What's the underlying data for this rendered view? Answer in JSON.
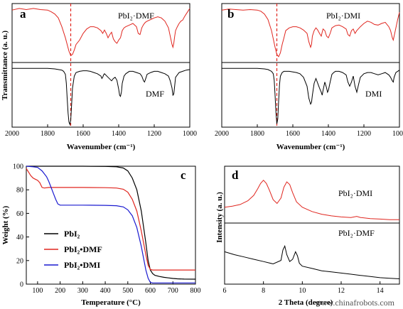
{
  "chart_data": [
    {
      "panel": "a",
      "type": "line",
      "xlabel": "Wavenumber (cm⁻¹)",
      "ylabel": "Transmittance (a. u.)",
      "xlim": [
        2000,
        1000
      ],
      "xticks": [
        2000,
        1800,
        1600,
        1400,
        1200,
        1000
      ],
      "reference_line_x": 1670,
      "series": [
        {
          "name": "PbI₂·DMF",
          "color": "#e0261f",
          "x": [
            2000,
            1960,
            1920,
            1880,
            1840,
            1800,
            1780,
            1760,
            1740,
            1720,
            1700,
            1690,
            1680,
            1670,
            1660,
            1650,
            1640,
            1620,
            1600,
            1580,
            1560,
            1540,
            1520,
            1500,
            1490,
            1480,
            1470,
            1460,
            1450,
            1440,
            1430,
            1420,
            1410,
            1400,
            1390,
            1380,
            1370,
            1360,
            1340,
            1320,
            1300,
            1290,
            1280,
            1270,
            1260,
            1250,
            1240,
            1220,
            1200,
            1180,
            1160,
            1140,
            1120,
            1110,
            1100,
            1095,
            1090,
            1085,
            1080,
            1070,
            1060,
            1050,
            1040,
            1030,
            1020,
            1010,
            1000
          ],
          "y": [
            0.92,
            0.95,
            0.93,
            0.95,
            0.93,
            0.92,
            0.89,
            0.85,
            0.78,
            0.62,
            0.42,
            0.3,
            0.18,
            0.1,
            0.12,
            0.2,
            0.3,
            0.38,
            0.5,
            0.58,
            0.62,
            0.62,
            0.6,
            0.55,
            0.5,
            0.56,
            0.5,
            0.42,
            0.48,
            0.52,
            0.4,
            0.35,
            0.32,
            0.38,
            0.42,
            0.55,
            0.6,
            0.62,
            0.65,
            0.68,
            0.62,
            0.5,
            0.48,
            0.6,
            0.66,
            0.7,
            0.72,
            0.75,
            0.78,
            0.8,
            0.78,
            0.72,
            0.6,
            0.45,
            0.3,
            0.25,
            0.32,
            0.45,
            0.55,
            0.62,
            0.68,
            0.72,
            0.74,
            0.8,
            0.85,
            0.9,
            0.95
          ]
        },
        {
          "name": "DMF",
          "color": "#000000",
          "x": [
            2000,
            1960,
            1920,
            1880,
            1840,
            1800,
            1760,
            1740,
            1720,
            1710,
            1700,
            1695,
            1690,
            1685,
            1680,
            1675,
            1670,
            1665,
            1660,
            1650,
            1640,
            1620,
            1600,
            1580,
            1560,
            1540,
            1520,
            1500,
            1495,
            1490,
            1485,
            1480,
            1460,
            1440,
            1430,
            1420,
            1410,
            1400,
            1395,
            1390,
            1385,
            1380,
            1370,
            1360,
            1340,
            1320,
            1300,
            1280,
            1270,
            1260,
            1255,
            1250,
            1240,
            1220,
            1200,
            1180,
            1160,
            1140,
            1120,
            1110,
            1100,
            1095,
            1090,
            1085,
            1080,
            1060,
            1040,
            1020,
            1000
          ],
          "y": [
            0.95,
            0.95,
            0.95,
            0.95,
            0.95,
            0.95,
            0.94,
            0.93,
            0.92,
            0.9,
            0.85,
            0.7,
            0.45,
            0.2,
            0.05,
            0.01,
            0.08,
            0.35,
            0.62,
            0.82,
            0.88,
            0.9,
            0.91,
            0.91,
            0.9,
            0.88,
            0.86,
            0.82,
            0.78,
            0.8,
            0.84,
            0.86,
            0.8,
            0.74,
            0.78,
            0.8,
            0.75,
            0.6,
            0.5,
            0.48,
            0.55,
            0.7,
            0.82,
            0.86,
            0.9,
            0.9,
            0.88,
            0.86,
            0.82,
            0.74,
            0.72,
            0.76,
            0.85,
            0.88,
            0.9,
            0.9,
            0.88,
            0.86,
            0.82,
            0.74,
            0.62,
            0.5,
            0.52,
            0.66,
            0.8,
            0.88,
            0.9,
            0.92,
            0.93
          ]
        }
      ],
      "labels": {
        "top": "PbI₂·DMF",
        "bottom": "DMF"
      }
    },
    {
      "panel": "b",
      "type": "line",
      "xlabel": "Wavenumber (cm⁻¹)",
      "ylabel": "",
      "xlim": [
        2000,
        1000
      ],
      "xticks": [
        2000,
        1800,
        1600,
        1400,
        1200,
        1000
      ],
      "reference_line_x": 1690,
      "series": [
        {
          "name": "PbI₂·DMI",
          "color": "#e0261f",
          "x": [
            2000,
            1960,
            1920,
            1880,
            1840,
            1800,
            1780,
            1760,
            1740,
            1720,
            1710,
            1700,
            1690,
            1680,
            1670,
            1660,
            1650,
            1640,
            1620,
            1600,
            1580,
            1560,
            1540,
            1520,
            1510,
            1500,
            1495,
            1490,
            1480,
            1470,
            1460,
            1450,
            1440,
            1435,
            1430,
            1420,
            1410,
            1400,
            1390,
            1380,
            1360,
            1340,
            1320,
            1300,
            1290,
            1280,
            1270,
            1260,
            1250,
            1240,
            1220,
            1200,
            1180,
            1160,
            1140,
            1120,
            1100,
            1080,
            1060,
            1050,
            1040,
            1035,
            1030,
            1020,
            1010,
            1000
          ],
          "y": [
            0.92,
            0.94,
            0.93,
            0.92,
            0.93,
            0.92,
            0.9,
            0.85,
            0.75,
            0.55,
            0.4,
            0.25,
            0.12,
            0.08,
            0.15,
            0.3,
            0.42,
            0.55,
            0.6,
            0.62,
            0.62,
            0.6,
            0.56,
            0.5,
            0.35,
            0.25,
            0.3,
            0.45,
            0.55,
            0.6,
            0.56,
            0.5,
            0.45,
            0.52,
            0.58,
            0.55,
            0.45,
            0.42,
            0.5,
            0.6,
            0.64,
            0.65,
            0.62,
            0.58,
            0.48,
            0.45,
            0.55,
            0.58,
            0.5,
            0.55,
            0.62,
            0.68,
            0.72,
            0.7,
            0.66,
            0.65,
            0.68,
            0.7,
            0.62,
            0.55,
            0.42,
            0.38,
            0.45,
            0.6,
            0.75,
            0.88
          ]
        },
        {
          "name": "DMI",
          "color": "#000000",
          "x": [
            2000,
            1960,
            1920,
            1880,
            1840,
            1800,
            1760,
            1740,
            1720,
            1710,
            1705,
            1700,
            1695,
            1690,
            1685,
            1680,
            1675,
            1670,
            1660,
            1650,
            1640,
            1620,
            1600,
            1580,
            1560,
            1540,
            1520,
            1510,
            1500,
            1495,
            1490,
            1480,
            1470,
            1460,
            1450,
            1440,
            1435,
            1430,
            1420,
            1410,
            1405,
            1400,
            1390,
            1380,
            1370,
            1360,
            1340,
            1320,
            1300,
            1290,
            1280,
            1270,
            1260,
            1250,
            1240,
            1230,
            1220,
            1200,
            1180,
            1160,
            1140,
            1120,
            1100,
            1080,
            1060,
            1050,
            1040,
            1035,
            1030,
            1020,
            1010,
            1000
          ],
          "y": [
            0.95,
            0.95,
            0.95,
            0.95,
            0.95,
            0.95,
            0.94,
            0.93,
            0.9,
            0.86,
            0.75,
            0.5,
            0.2,
            0.02,
            0.1,
            0.4,
            0.68,
            0.82,
            0.88,
            0.9,
            0.9,
            0.9,
            0.89,
            0.88,
            0.86,
            0.8,
            0.65,
            0.45,
            0.35,
            0.38,
            0.5,
            0.7,
            0.78,
            0.7,
            0.62,
            0.55,
            0.5,
            0.58,
            0.72,
            0.62,
            0.55,
            0.58,
            0.72,
            0.85,
            0.88,
            0.9,
            0.9,
            0.88,
            0.84,
            0.72,
            0.65,
            0.72,
            0.82,
            0.65,
            0.55,
            0.68,
            0.8,
            0.86,
            0.88,
            0.88,
            0.86,
            0.84,
            0.86,
            0.88,
            0.84,
            0.8,
            0.74,
            0.72,
            0.8,
            0.88,
            0.9,
            0.92
          ]
        }
      ],
      "labels": {
        "top": "PbI₂·DMI",
        "bottom": "DMI"
      }
    },
    {
      "panel": "c",
      "type": "line",
      "xlabel": "Temperature (°C)",
      "ylabel": "Weight (%)",
      "xlim": [
        50,
        800
      ],
      "ylim": [
        0,
        100
      ],
      "xticks": [
        100,
        200,
        300,
        400,
        500,
        600,
        700,
        800
      ],
      "yticks": [
        0,
        20,
        40,
        60,
        80,
        100
      ],
      "legend": "center-left",
      "series": [
        {
          "name": "PbI₂",
          "color": "#000000",
          "x": [
            50,
            100,
            200,
            300,
            400,
            450,
            480,
            500,
            520,
            540,
            560,
            580,
            590,
            600,
            610,
            620,
            640,
            660,
            680,
            700,
            720,
            750,
            800
          ],
          "y": [
            100,
            100,
            100,
            100,
            99.8,
            99.5,
            98.5,
            96,
            90,
            80,
            62,
            35,
            20,
            12,
            9,
            7.5,
            6.5,
            5.8,
            5.3,
            4.8,
            4.5,
            4.3,
            4.2
          ]
        },
        {
          "name": "PbI₂•DMF",
          "color": "#e0261f",
          "x": [
            50,
            60,
            70,
            80,
            90,
            100,
            110,
            115,
            120,
            130,
            150,
            200,
            300,
            400,
            450,
            480,
            500,
            520,
            540,
            560,
            570,
            580,
            590,
            600,
            610,
            620,
            650,
            700,
            750,
            800
          ],
          "y": [
            98,
            95,
            92,
            90,
            89,
            88,
            86,
            84,
            82,
            81.5,
            82,
            82,
            82,
            81.8,
            81.5,
            80.5,
            78,
            72,
            62,
            45,
            35,
            25,
            16,
            12.5,
            12,
            12,
            12,
            12,
            12,
            12
          ]
        },
        {
          "name": "PbI₂•DMI",
          "color": "#1a1ad0",
          "x": [
            50,
            80,
            100,
            120,
            140,
            150,
            160,
            170,
            180,
            190,
            200,
            220,
            300,
            400,
            450,
            480,
            500,
            520,
            540,
            560,
            570,
            580,
            590,
            600,
            610,
            620,
            650,
            700,
            750,
            800
          ],
          "y": [
            100,
            99.5,
            99,
            96,
            91,
            87,
            82,
            77,
            72,
            68,
            67,
            67,
            67,
            66.8,
            66.5,
            65.5,
            63,
            58,
            48,
            32,
            22,
            12,
            5,
            1.5,
            1,
            1,
            1,
            1,
            1,
            1
          ]
        }
      ]
    },
    {
      "panel": "d",
      "type": "line",
      "xlabel": "2 Theta (degree)",
      "ylabel": "Intensity (a. u.)",
      "xlim": [
        6,
        15
      ],
      "xticks": [
        6,
        8,
        10,
        12,
        14
      ],
      "series": [
        {
          "name": "PbI₂·DMI",
          "color": "#e0261f",
          "x": [
            6,
            6.4,
            6.8,
            7.2,
            7.5,
            7.7,
            7.85,
            8.0,
            8.15,
            8.3,
            8.5,
            8.7,
            8.9,
            9.05,
            9.2,
            9.35,
            9.5,
            9.7,
            10,
            10.5,
            11,
            11.5,
            12,
            12.5,
            12.8,
            13,
            13.5,
            14,
            14.5,
            15
          ],
          "y": [
            0.28,
            0.3,
            0.33,
            0.4,
            0.5,
            0.62,
            0.72,
            0.78,
            0.72,
            0.6,
            0.42,
            0.35,
            0.45,
            0.65,
            0.75,
            0.7,
            0.55,
            0.38,
            0.28,
            0.2,
            0.15,
            0.12,
            0.1,
            0.09,
            0.11,
            0.09,
            0.07,
            0.06,
            0.05,
            0.05
          ]
        },
        {
          "name": "PbI₂·DMF",
          "color": "#000000",
          "x": [
            6,
            6.5,
            7,
            7.5,
            8,
            8.5,
            8.9,
            9.0,
            9.1,
            9.2,
            9.35,
            9.5,
            9.65,
            9.75,
            9.85,
            10,
            10.5,
            11,
            11.5,
            12,
            12.5,
            13,
            13.5,
            14,
            14.5,
            15
          ],
          "y": [
            0.55,
            0.5,
            0.46,
            0.42,
            0.38,
            0.34,
            0.4,
            0.58,
            0.65,
            0.5,
            0.38,
            0.42,
            0.55,
            0.48,
            0.35,
            0.3,
            0.26,
            0.22,
            0.2,
            0.18,
            0.16,
            0.14,
            0.12,
            0.1,
            0.09,
            0.08
          ]
        }
      ],
      "labels": {
        "top": "PbI₂·DMI",
        "bottom": "PbI₂·DMF"
      }
    }
  ],
  "watermark": "www.chinafrobots.com"
}
